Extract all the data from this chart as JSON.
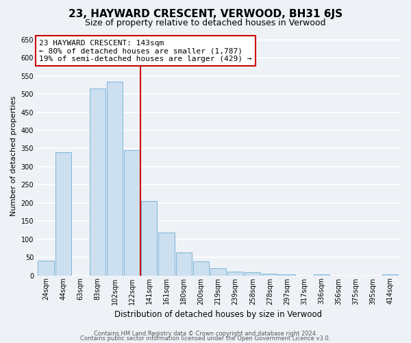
{
  "title": "23, HAYWARD CRESCENT, VERWOOD, BH31 6JS",
  "subtitle": "Size of property relative to detached houses in Verwood",
  "xlabel": "Distribution of detached houses by size in Verwood",
  "ylabel": "Number of detached properties",
  "bar_labels": [
    "24sqm",
    "44sqm",
    "63sqm",
    "83sqm",
    "102sqm",
    "122sqm",
    "141sqm",
    "161sqm",
    "180sqm",
    "200sqm",
    "219sqm",
    "239sqm",
    "258sqm",
    "278sqm",
    "297sqm",
    "317sqm",
    "336sqm",
    "356sqm",
    "375sqm",
    "395sqm",
    "414sqm"
  ],
  "bar_values": [
    40,
    340,
    0,
    515,
    535,
    345,
    205,
    118,
    63,
    38,
    20,
    10,
    8,
    5,
    3,
    0,
    2,
    0,
    0,
    0,
    2
  ],
  "bar_color": "#cde0f0",
  "bar_edge_color": "#7ab4d8",
  "property_line_x": 6.0,
  "property_line_color": "#cc0000",
  "annotation_line1": "23 HAYWARD CRESCENT: 143sqm",
  "annotation_line2": "← 80% of detached houses are smaller (1,787)",
  "annotation_line3": "19% of semi-detached houses are larger (429) →",
  "annotation_box_color": "#cc0000",
  "ylim": [
    0,
    660
  ],
  "yticks": [
    0,
    50,
    100,
    150,
    200,
    250,
    300,
    350,
    400,
    450,
    500,
    550,
    600,
    650
  ],
  "footer1": "Contains HM Land Registry data © Crown copyright and database right 2024.",
  "footer2": "Contains public sector information licensed under the Open Government Licence v3.0.",
  "background_color": "#eef2f7",
  "grid_color": "#ffffff",
  "title_fontsize": 11,
  "subtitle_fontsize": 9,
  "ylabel_fontsize": 8,
  "xlabel_fontsize": 8.5,
  "tick_fontsize": 7,
  "footer_fontsize": 6,
  "annot_fontsize": 8
}
